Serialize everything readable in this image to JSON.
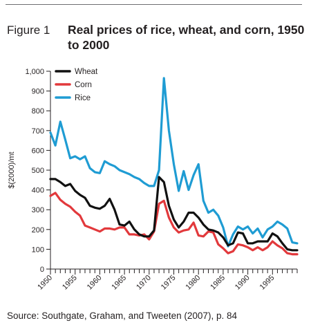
{
  "figure": {
    "label": "Figure 1",
    "title": "Real prices of rice, wheat, and corn, 1950 to 2000"
  },
  "source": "Source: Southgate, Graham, and Tweeten (2007), p. 84",
  "colors": {
    "wheat": "#111111",
    "corn": "#e2393c",
    "rice": "#1f9cd3",
    "axis": "#231f20"
  },
  "chart_data": {
    "type": "line",
    "ylabel": "$(2000)/mt",
    "xlabel": "",
    "xlim": [
      1950,
      2000
    ],
    "ylim": [
      0,
      1000
    ],
    "yticks": [
      0,
      100,
      200,
      300,
      400,
      500,
      600,
      700,
      800,
      900,
      1000
    ],
    "ytick_labels": [
      "0",
      "100",
      "200",
      "300",
      "400",
      "500",
      "600",
      "700",
      "800",
      "900",
      "1,000"
    ],
    "xticks_labeled": [
      1950,
      1955,
      1960,
      1965,
      1970,
      1975,
      1980,
      1985,
      1990,
      1995
    ],
    "legend": {
      "position": "top-left",
      "entries": [
        "Wheat",
        "Corn",
        "Rice"
      ]
    },
    "grid": false,
    "x": [
      1950,
      1951,
      1952,
      1953,
      1954,
      1955,
      1956,
      1957,
      1958,
      1959,
      1960,
      1961,
      1962,
      1963,
      1964,
      1965,
      1966,
      1967,
      1968,
      1969,
      1970,
      1971,
      1972,
      1973,
      1974,
      1975,
      1976,
      1977,
      1978,
      1979,
      1980,
      1981,
      1982,
      1983,
      1984,
      1985,
      1986,
      1987,
      1988,
      1989,
      1990,
      1991,
      1992,
      1993,
      1994,
      1995,
      1996,
      1997,
      1998,
      1999,
      2000
    ],
    "series": [
      {
        "name": "Wheat",
        "values": [
          455,
          455,
          440,
          420,
          430,
          395,
          375,
          360,
          320,
          310,
          305,
          320,
          355,
          300,
          225,
          220,
          240,
          200,
          175,
          165,
          165,
          195,
          465,
          440,
          320,
          250,
          210,
          240,
          285,
          285,
          260,
          225,
          200,
          195,
          185,
          160,
          120,
          130,
          185,
          180,
          130,
          130,
          140,
          140,
          140,
          180,
          165,
          130,
          100,
          95,
          95
        ]
      },
      {
        "name": "Corn",
        "values": [
          370,
          385,
          350,
          330,
          315,
          290,
          270,
          220,
          210,
          200,
          190,
          205,
          205,
          200,
          210,
          210,
          175,
          175,
          170,
          175,
          150,
          190,
          330,
          345,
          260,
          210,
          185,
          195,
          200,
          235,
          170,
          165,
          190,
          185,
          125,
          105,
          80,
          90,
          125,
          120,
          110,
          95,
          110,
          95,
          110,
          140,
          120,
          105,
          80,
          75,
          75
        ]
      },
      {
        "name": "Rice",
        "values": [
          690,
          625,
          745,
          655,
          560,
          570,
          555,
          570,
          510,
          490,
          485,
          545,
          530,
          520,
          500,
          490,
          480,
          465,
          455,
          435,
          420,
          420,
          500,
          965,
          700,
          530,
          395,
          495,
          400,
          475,
          530,
          345,
          285,
          300,
          270,
          210,
          115,
          175,
          215,
          200,
          215,
          180,
          205,
          160,
          200,
          215,
          240,
          225,
          205,
          135,
          130
        ]
      }
    ]
  }
}
